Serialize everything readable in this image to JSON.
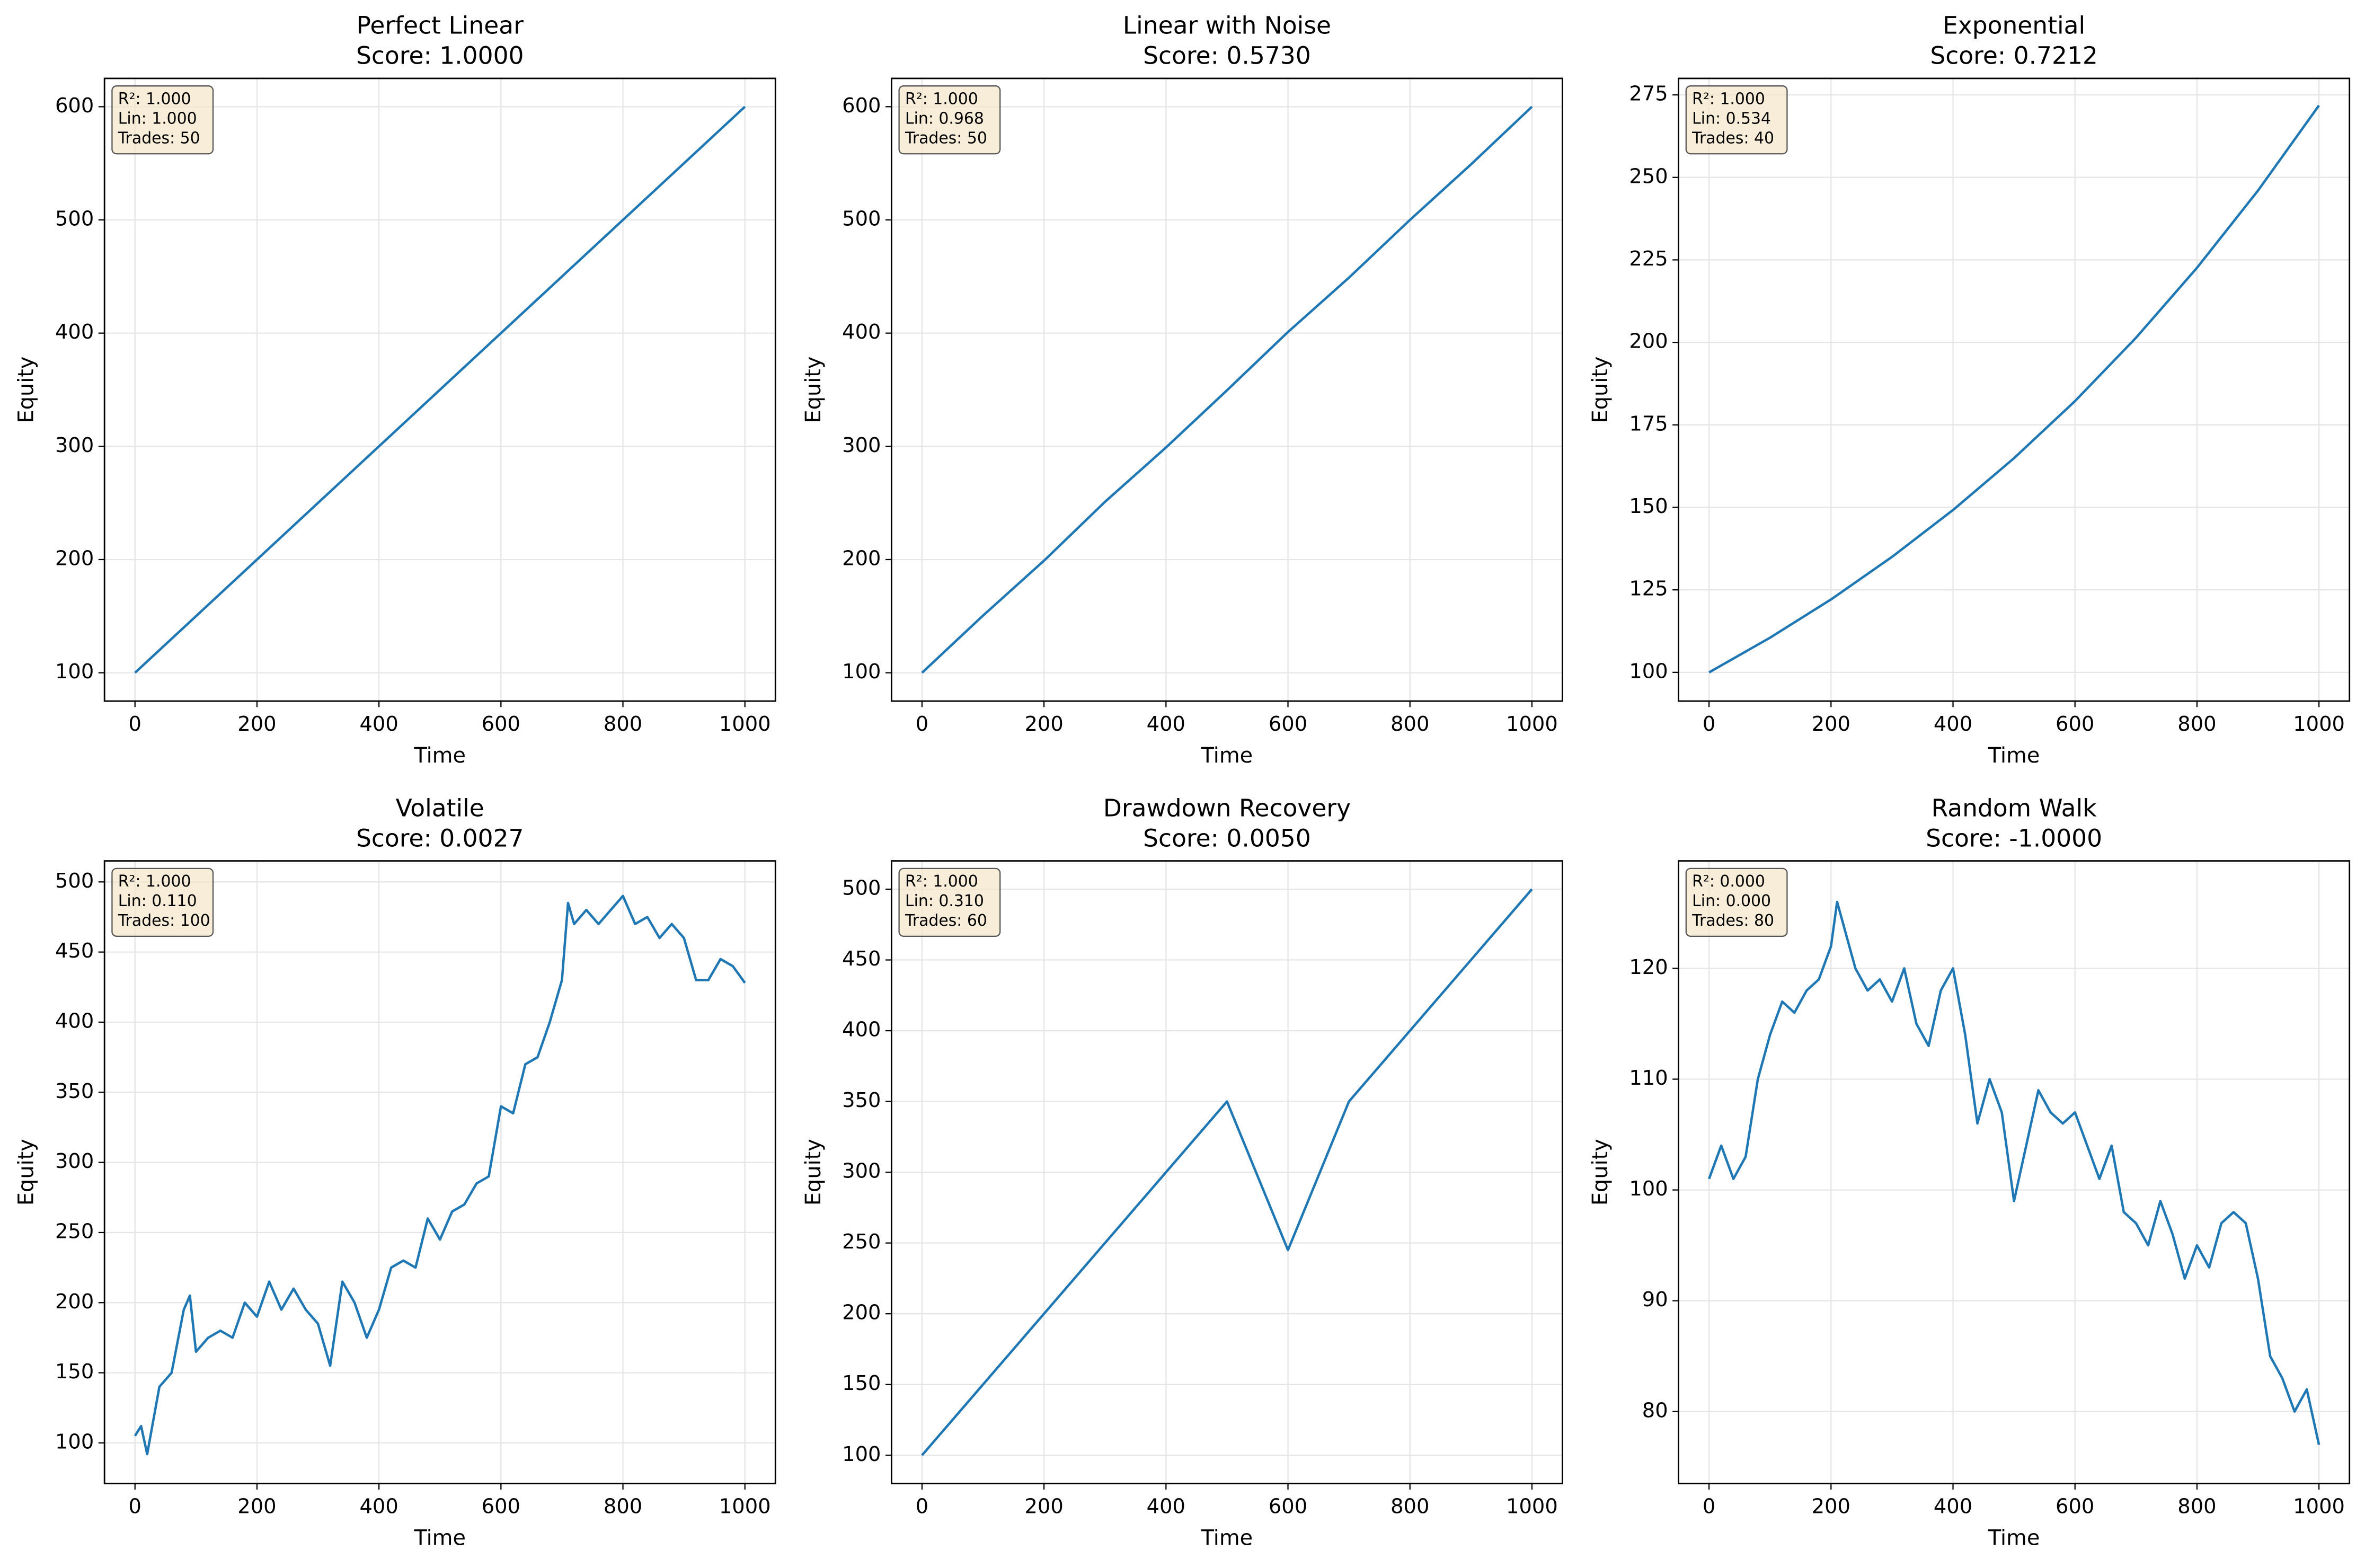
{
  "chart_data": [
    {
      "type": "line",
      "title": "Perfect Linear",
      "subtitle": "Score: 1.0000",
      "xlabel": "Time",
      "ylabel": "Equity",
      "annotations": [
        "R²: 1.000",
        "Lin: 1.000",
        "Trades: 50"
      ],
      "x": [
        0,
        1000
      ],
      "series": [
        {
          "color": "#1f77b4",
          "values": [
            100,
            600
          ]
        }
      ],
      "xlim": [
        -50,
        1050
      ],
      "ylim": [
        75,
        625
      ],
      "xticks": [
        0,
        200,
        400,
        600,
        800,
        1000
      ],
      "yticks": [
        100,
        200,
        300,
        400,
        500,
        600
      ],
      "grid": true
    },
    {
      "type": "line",
      "title": "Linear with Noise",
      "subtitle": "Score: 0.5730",
      "xlabel": "Time",
      "ylabel": "Equity",
      "annotations": [
        "R²: 1.000",
        "Lin: 0.968",
        "Trades: 50"
      ],
      "x": [
        0,
        100,
        200,
        300,
        400,
        500,
        600,
        700,
        800,
        900,
        1000
      ],
      "series": [
        {
          "color": "#1f77b4",
          "values": [
            100,
            150.5,
            199,
            251,
            299,
            349.5,
            401,
            449,
            500,
            549,
            600
          ]
        }
      ],
      "xlim": [
        -50,
        1050
      ],
      "ylim": [
        75,
        625
      ],
      "xticks": [
        0,
        200,
        400,
        600,
        800,
        1000
      ],
      "yticks": [
        100,
        200,
        300,
        400,
        500,
        600
      ],
      "grid": true
    },
    {
      "type": "line",
      "title": "Exponential",
      "subtitle": "Score: 0.7212",
      "xlabel": "Time",
      "ylabel": "Equity",
      "annotations": [
        "R²: 1.000",
        "Lin: 0.534",
        "Trades: 40"
      ],
      "x": [
        0,
        100,
        200,
        300,
        400,
        500,
        600,
        700,
        800,
        900,
        1000
      ],
      "series": [
        {
          "color": "#1f77b4",
          "values": [
            100,
            110.5,
            122.1,
            135,
            149.2,
            164.9,
            182.2,
            201.4,
            222.6,
            246,
            271.8
          ]
        }
      ],
      "xlim": [
        -50,
        1050
      ],
      "ylim": [
        91.3,
        280
      ],
      "xticks": [
        0,
        200,
        400,
        600,
        800,
        1000
      ],
      "yticks": [
        100,
        125,
        150,
        175,
        200,
        225,
        250,
        275
      ],
      "grid": true
    },
    {
      "type": "line",
      "title": "Volatile",
      "subtitle": "Score: 0.0027",
      "xlabel": "Time",
      "ylabel": "Equity",
      "annotations": [
        "R²: 1.000",
        "Lin: 0.110",
        "Trades: 100"
      ],
      "x": [
        0,
        10,
        20,
        40,
        60,
        80,
        90,
        100,
        120,
        140,
        160,
        180,
        200,
        220,
        240,
        260,
        280,
        300,
        320,
        340,
        360,
        380,
        400,
        420,
        440,
        460,
        480,
        500,
        520,
        540,
        560,
        580,
        600,
        620,
        640,
        660,
        680,
        700,
        710,
        720,
        740,
        760,
        780,
        800,
        820,
        840,
        860,
        880,
        900,
        920,
        940,
        960,
        980,
        1000
      ],
      "series": [
        {
          "color": "#1f77b4",
          "values": [
            105,
            112,
            92,
            140,
            150,
            195,
            205,
            165,
            175,
            180,
            175,
            200,
            190,
            215,
            195,
            210,
            195,
            185,
            155,
            215,
            200,
            175,
            195,
            225,
            230,
            225,
            260,
            245,
            265,
            270,
            285,
            290,
            340,
            335,
            370,
            375,
            400,
            430,
            485,
            470,
            480,
            470,
            480,
            490,
            470,
            475,
            460,
            470,
            460,
            430,
            430,
            445,
            440,
            428
          ]
        }
      ],
      "xlim": [
        -50,
        1050
      ],
      "ylim": [
        71,
        515
      ],
      "xticks": [
        0,
        200,
        400,
        600,
        800,
        1000
      ],
      "yticks": [
        100,
        150,
        200,
        250,
        300,
        350,
        400,
        450,
        500
      ],
      "grid": true
    },
    {
      "type": "line",
      "title": "Drawdown Recovery",
      "subtitle": "Score: 0.0050",
      "xlabel": "Time",
      "ylabel": "Equity",
      "annotations": [
        "R²: 1.000",
        "Lin: 0.310",
        "Trades: 60"
      ],
      "x": [
        0,
        500,
        600,
        700,
        1000
      ],
      "series": [
        {
          "color": "#1f77b4",
          "values": [
            100,
            350,
            245,
            350,
            500
          ]
        }
      ],
      "xlim": [
        -50,
        1050
      ],
      "ylim": [
        80,
        520
      ],
      "xticks": [
        0,
        200,
        400,
        600,
        800,
        1000
      ],
      "yticks": [
        100,
        150,
        200,
        250,
        300,
        350,
        400,
        450,
        500
      ],
      "grid": true
    },
    {
      "type": "line",
      "title": "Random Walk",
      "subtitle": "Score: -1.0000",
      "xlabel": "Time",
      "ylabel": "Equity",
      "annotations": [
        "R²: 0.000",
        "Lin: 0.000",
        "Trades: 80"
      ],
      "x": [
        0,
        20,
        40,
        60,
        80,
        100,
        120,
        140,
        160,
        180,
        200,
        210,
        220,
        240,
        260,
        280,
        300,
        320,
        340,
        360,
        380,
        400,
        420,
        440,
        460,
        480,
        500,
        520,
        540,
        560,
        580,
        600,
        620,
        640,
        660,
        680,
        700,
        720,
        740,
        760,
        780,
        800,
        820,
        840,
        860,
        880,
        900,
        920,
        940,
        960,
        980,
        1000
      ],
      "series": [
        {
          "color": "#1f77b4",
          "values": [
            101,
            104,
            101,
            103,
            110,
            114,
            117,
            116,
            118,
            119,
            122,
            126,
            124,
            120,
            118,
            119,
            117,
            120,
            115,
            113,
            118,
            120,
            114,
            106,
            110,
            107,
            99,
            104,
            109,
            107,
            106,
            107,
            104,
            101,
            104,
            98,
            97,
            95,
            99,
            96,
            92,
            95,
            93,
            97,
            98,
            97,
            92,
            85,
            83,
            80,
            82,
            77
          ]
        }
      ],
      "xlim": [
        -50,
        1050
      ],
      "ylim": [
        73.5,
        129.7
      ],
      "xticks": [
        0,
        200,
        400,
        600,
        800,
        1000
      ],
      "yticks": [
        80,
        90,
        100,
        110,
        120
      ],
      "grid": true
    }
  ]
}
